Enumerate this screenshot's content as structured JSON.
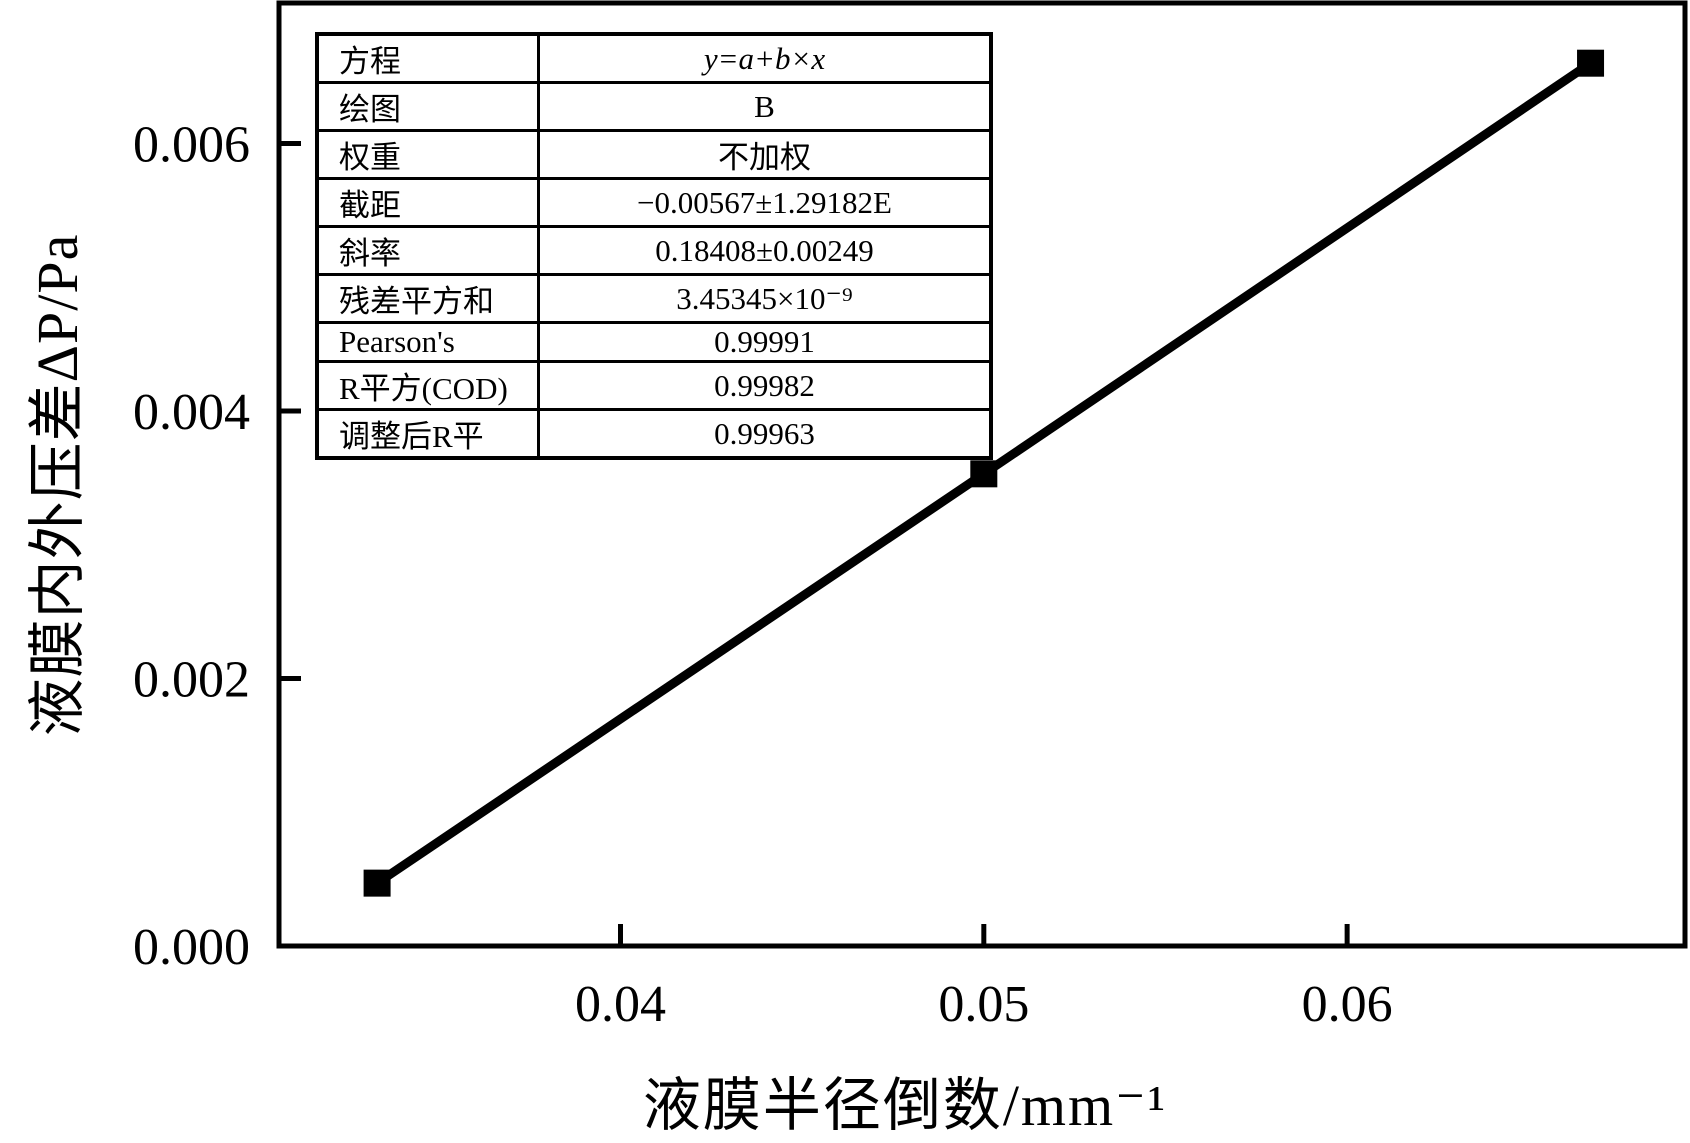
{
  "chart_data": {
    "type": "scatter",
    "title": "",
    "xlabel": "液膜半径倒数/mm⁻¹",
    "ylabel": "液膜内外压差ΔP/Pa",
    "x": [
      0.0333,
      0.05,
      0.0667
    ],
    "y": [
      0.00047,
      0.00353,
      0.0066
    ],
    "xlim": [
      0.0306,
      0.0693
    ],
    "ylim": [
      0,
      0.00705
    ],
    "xticks": [
      0.04,
      0.05,
      0.06
    ],
    "yticks": [
      0,
      0.002,
      0.004,
      0.006
    ],
    "xtick_labels": [
      "0.04",
      "0.05",
      "0.06"
    ],
    "ytick_labels": [
      "0.000",
      "0.002",
      "0.004",
      "0.006"
    ],
    "grid": false,
    "legend": "none",
    "marker": "filled-square",
    "line": "solid",
    "axis_color": "#000000",
    "line_color": "#000000",
    "marker_color": "#000000",
    "inset_table": {
      "rows": [
        {
          "label": "方程",
          "value": "y=a+b×x"
        },
        {
          "label": "绘图",
          "value": "B"
        },
        {
          "label": "权重",
          "value": "不加权"
        },
        {
          "label": "截距",
          "value": "−0.00567±1.29182E"
        },
        {
          "label": "斜率",
          "value": "0.18408±0.00249"
        },
        {
          "label": "残差平方和",
          "value": "3.45345×10⁻⁹"
        },
        {
          "label": "Pearson's",
          "value": "0.99991"
        },
        {
          "label": "R平方(COD)",
          "value": "0.99982"
        },
        {
          "label": "调整后R平",
          "value": "0.99963"
        }
      ]
    }
  }
}
